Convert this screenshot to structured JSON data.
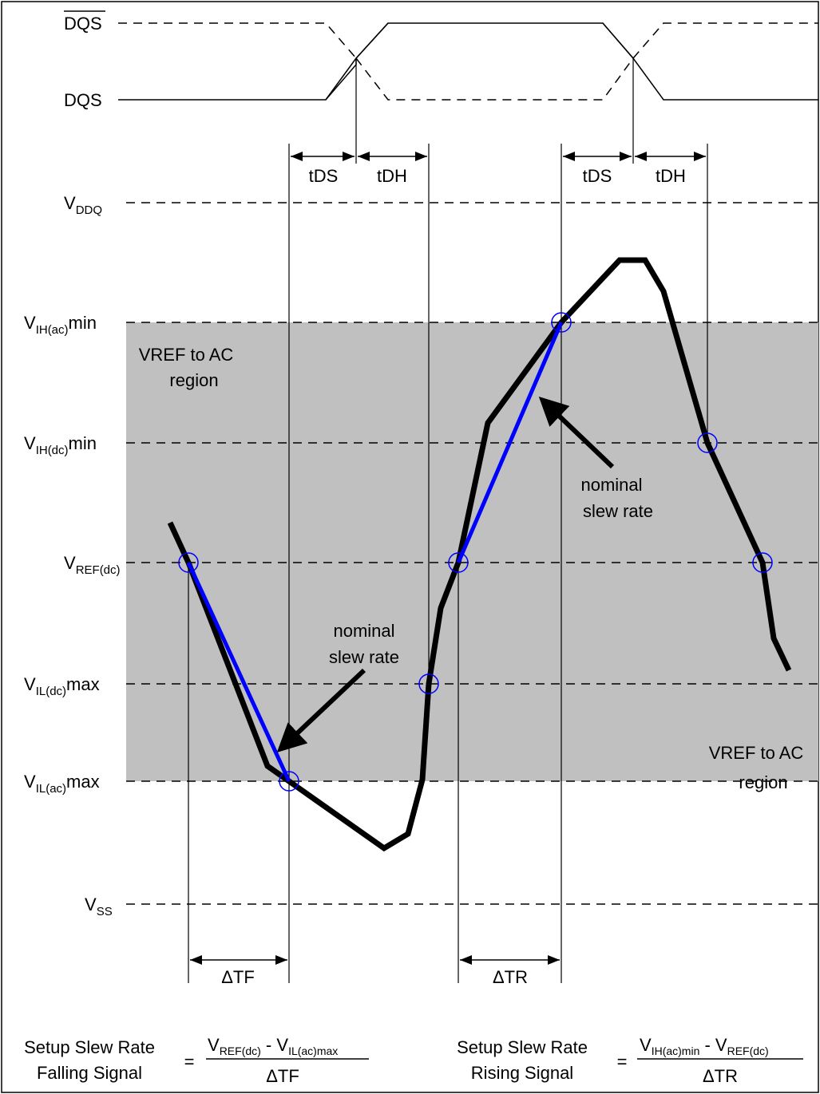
{
  "diagram": {
    "strobe": {
      "dqs_bar": "DQS",
      "dqs": "DQS"
    },
    "timing": {
      "tds": "tDS",
      "tdh": "tDH"
    },
    "levels": {
      "vddq": {
        "v": "V",
        "sub": "DDQ",
        "tail": ""
      },
      "vih_ac": {
        "v": "V",
        "sub": "IH(ac)",
        "tail": "min"
      },
      "vih_dc": {
        "v": "V",
        "sub": "IH(dc)",
        "tail": "min"
      },
      "vref": {
        "v": "V",
        "sub": "REF(dc)",
        "tail": ""
      },
      "vil_dc": {
        "v": "V",
        "sub": "IL(dc)",
        "tail": "max"
      },
      "vil_ac": {
        "v": "V",
        "sub": "IL(ac)",
        "tail": "max"
      },
      "vss": {
        "v": "V",
        "sub": "SS",
        "tail": ""
      }
    },
    "region_upper": {
      "line1": "VREF to AC",
      "line2": "region"
    },
    "region_lower": {
      "line1": "VREF to AC",
      "line2": "region"
    },
    "annotation_upper": {
      "line1": "nominal",
      "line2": "slew rate"
    },
    "annotation_lower": {
      "line1": "nominal",
      "line2": "slew rate"
    },
    "delta_tf": "ΔTF",
    "delta_tr": "ΔTR",
    "formula_falling": {
      "name_line1": "Setup Slew Rate",
      "name_line2": "Falling Signal",
      "equals": "=",
      "num_a_v": "V",
      "num_a_sub": "REF(dc)",
      "num_minus": " - ",
      "num_b_v": "V",
      "num_b_sub": "IL(ac)max",
      "den": "ΔTF"
    },
    "formula_rising": {
      "name_line1": "Setup Slew Rate",
      "name_line2": "Rising Signal",
      "equals": "=",
      "num_a_v": "V",
      "num_a_sub": "IH(ac)min",
      "num_minus": " - ",
      "num_b_v": "V",
      "num_b_sub": "REF(dc)",
      "den": "ΔTR"
    },
    "colors": {
      "signal": "#000000",
      "nominal_slew": "#0000ff",
      "crossing_circle": "#0000ff",
      "region_fill": "#c0c0c0"
    }
  }
}
